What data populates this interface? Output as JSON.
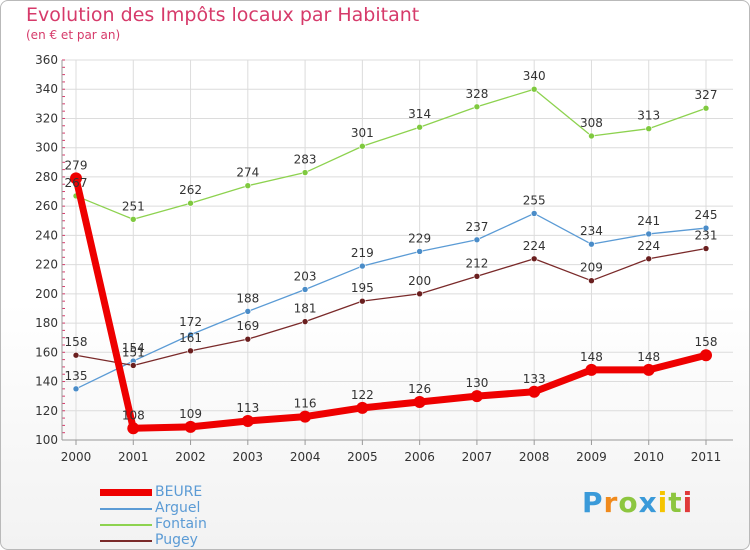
{
  "header": {
    "title": "Evolution des Impôts locaux par Habitant",
    "subtitle": "(en € et par an)"
  },
  "brand": {
    "name": "Proxiti",
    "letters": [
      {
        "ch": "P",
        "color": "#3a9ad9"
      },
      {
        "ch": "r",
        "color": "#f08a1c"
      },
      {
        "ch": "o",
        "color": "#8dc63f"
      },
      {
        "ch": "x",
        "color": "#3a9ad9"
      },
      {
        "ch": "i",
        "color": "#f5c400"
      },
      {
        "ch": "t",
        "color": "#8dc63f"
      },
      {
        "ch": "i",
        "color": "#e03a3a"
      }
    ]
  },
  "chart_data": {
    "type": "line",
    "title": "Evolution des Impôts locaux par Habitant",
    "subtitle": "(en € et par an)",
    "xlabel": "",
    "ylabel": "",
    "categories": [
      "2000",
      "2001",
      "2002",
      "2003",
      "2004",
      "2005",
      "2006",
      "2007",
      "2008",
      "2009",
      "2010",
      "2011"
    ],
    "ylim": [
      100,
      360
    ],
    "yticks": [
      100,
      120,
      140,
      160,
      180,
      200,
      220,
      240,
      260,
      280,
      300,
      320,
      340,
      360
    ],
    "grid": true,
    "legend": "bottom-left",
    "series": [
      {
        "name": "Fontain",
        "color": "#8dd24f",
        "dot": "#7fc93f",
        "highlight": false,
        "values": [
          267,
          251,
          262,
          274,
          283,
          301,
          314,
          328,
          340,
          308,
          313,
          327
        ]
      },
      {
        "name": "Arguel",
        "color": "#5b9bd5",
        "dot": "#4a8cc8",
        "highlight": false,
        "values": [
          135,
          154,
          172,
          188,
          203,
          219,
          229,
          237,
          255,
          234,
          241,
          245
        ]
      },
      {
        "name": "Pugey",
        "color": "#7a2a2a",
        "dot": "#6a1f1f",
        "highlight": false,
        "values": [
          158,
          151,
          161,
          169,
          181,
          195,
          200,
          212,
          224,
          209,
          224,
          231
        ]
      },
      {
        "name": "BEURE",
        "color": "#ee0000",
        "dot": "#ee0000",
        "highlight": true,
        "values": [
          279,
          108,
          109,
          113,
          116,
          122,
          126,
          130,
          133,
          148,
          148,
          158
        ]
      }
    ],
    "legend_order": [
      "BEURE",
      "Arguel",
      "Fontain",
      "Pugey"
    ]
  }
}
